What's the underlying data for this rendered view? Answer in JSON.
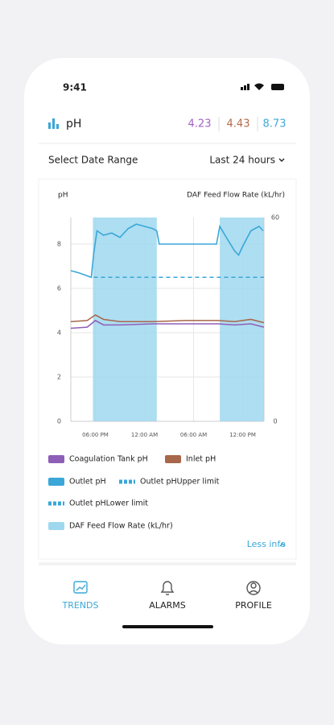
{
  "status_bar": {
    "time": "9:41"
  },
  "header": {
    "title": "pH",
    "readings": [
      {
        "value": 4.23,
        "color": "#a561c8"
      },
      {
        "value": 4.43,
        "color": "#b56a4a"
      },
      {
        "value": 8.73,
        "color": "#3fa9d9"
      }
    ]
  },
  "date_range": {
    "label": "Select Date Range",
    "selected": "Last 24 hours"
  },
  "chart_data": {
    "type": "line",
    "ylabel": "pH",
    "y2label": "DAF Feed Flow Rate (kL/hr)",
    "xlim": [
      0,
      23.6
    ],
    "ylim": [
      0,
      9.2
    ],
    "y2lim": [
      0,
      60
    ],
    "xticks": [
      {
        "value": 3,
        "label": "06:00 PM"
      },
      {
        "value": 9,
        "label": "12:00 AM"
      },
      {
        "value": 15,
        "label": "06:00 AM"
      },
      {
        "value": 21,
        "label": "12:00 PM"
      }
    ],
    "yticks": [
      0,
      2,
      4,
      6,
      8
    ],
    "y2ticks": [
      0,
      60
    ],
    "grid": true,
    "series": [
      {
        "name": "Coagulation Tank pH",
        "color": "#8f5fb8",
        "x": [
          0,
          2,
          3,
          4,
          6,
          10,
          14,
          18,
          20,
          22,
          23.6
        ],
        "values": [
          4.2,
          4.25,
          4.55,
          4.35,
          4.35,
          4.4,
          4.4,
          4.4,
          4.35,
          4.4,
          4.25
        ]
      },
      {
        "name": "Inlet pH",
        "color": "#a8664a",
        "x": [
          0,
          2,
          3,
          4,
          6,
          10,
          14,
          18,
          20,
          22,
          23.6
        ],
        "values": [
          4.5,
          4.55,
          4.8,
          4.6,
          4.5,
          4.5,
          4.55,
          4.55,
          4.5,
          4.6,
          4.45
        ]
      },
      {
        "name": "Outlet pH",
        "color": "#3aa7d8",
        "x": [
          0,
          1,
          2.5,
          2.8,
          3.2,
          4,
          5,
          6,
          7,
          8,
          9,
          10,
          10.5,
          10.8,
          14,
          17.8,
          18.2,
          19,
          20,
          20.5,
          21,
          22,
          23,
          23.5
        ],
        "values": [
          6.8,
          6.7,
          6.5,
          7.6,
          8.6,
          8.4,
          8.5,
          8.3,
          8.7,
          8.9,
          8.8,
          8.7,
          8.6,
          8.0,
          8.0,
          8.0,
          8.8,
          8.3,
          7.7,
          7.5,
          7.9,
          8.6,
          8.8,
          8.6
        ]
      },
      {
        "name": "Outlet pHUpper limit",
        "color": "#3aa7d8",
        "dashed": true,
        "x": [
          2.8,
          23.6
        ],
        "values": [
          6.5,
          6.5
        ]
      },
      {
        "name": "Outlet pHLower limit",
        "color": "#3aa7d8",
        "dashed": true,
        "x": [
          2.8,
          23.6
        ],
        "values": [
          6.5,
          6.5
        ]
      },
      {
        "name": "DAF Feed Flow Rate (kL/hr)",
        "color": "#9fd8ee",
        "area": true,
        "axis": "y2",
        "x": [
          0,
          2.7,
          2.7,
          10.5,
          10.5,
          18.2,
          18.2,
          23.6
        ],
        "values": [
          0,
          0,
          60,
          60,
          0,
          0,
          60,
          60
        ]
      }
    ]
  },
  "toggle": "Less info",
  "nav": [
    "TRENDS",
    "ALARMS",
    "PROFILE"
  ]
}
